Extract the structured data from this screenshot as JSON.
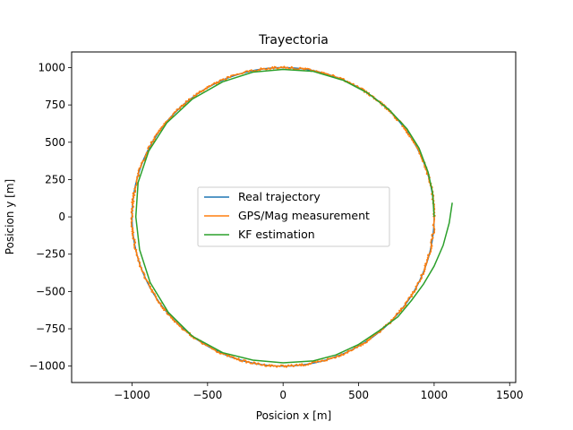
{
  "chart_data": {
    "type": "line",
    "title": "Trayectoria",
    "xlabel": "Posicion x [m]",
    "ylabel": "Posicion y [m]",
    "xlim": [
      -1400,
      1540
    ],
    "ylim": [
      -1110,
      1105
    ],
    "xticks": [
      -1000,
      -500,
      0,
      500,
      1000,
      1500
    ],
    "yticks": [
      -1000,
      -750,
      -500,
      -250,
      0,
      250,
      500,
      750,
      1000
    ],
    "grid": false,
    "legend_position": "center",
    "series": [
      {
        "name": "Real trajectory",
        "color": "#1f77b4",
        "shape": "circle",
        "center": [
          0,
          0
        ],
        "radius": 1000,
        "start_angle_deg": 0,
        "sweep_deg": 360
      },
      {
        "name": "GPS/Mag measurement",
        "color": "#ff7f0e",
        "shape": "noisy-circle",
        "center": [
          0,
          0
        ],
        "radius": 1000,
        "noise": 8,
        "start_angle_deg": 0,
        "sweep_deg": 360
      },
      {
        "name": "KF estimation",
        "color": "#2ca02c",
        "shape": "spiral",
        "points": [
          [
            1120,
            95
          ],
          [
            1100,
            -40
          ],
          [
            1060,
            -190
          ],
          [
            1000,
            -330
          ],
          [
            930,
            -450
          ],
          [
            850,
            -560
          ],
          [
            760,
            -670
          ],
          [
            640,
            -760
          ],
          [
            500,
            -855
          ],
          [
            350,
            -925
          ],
          [
            200,
            -965
          ],
          [
            0,
            -978
          ],
          [
            -200,
            -960
          ],
          [
            -400,
            -910
          ],
          [
            -600,
            -800
          ],
          [
            -760,
            -640
          ],
          [
            -880,
            -440
          ],
          [
            -950,
            -220
          ],
          [
            -975,
            0
          ],
          [
            -960,
            230
          ],
          [
            -890,
            440
          ],
          [
            -770,
            630
          ],
          [
            -600,
            790
          ],
          [
            -400,
            905
          ],
          [
            -200,
            970
          ],
          [
            0,
            988
          ],
          [
            200,
            975
          ],
          [
            400,
            915
          ],
          [
            560,
            830
          ],
          [
            700,
            720
          ],
          [
            820,
            590
          ],
          [
            900,
            460
          ],
          [
            960,
            300
          ],
          [
            990,
            160
          ],
          [
            1000,
            0
          ]
        ]
      }
    ]
  }
}
